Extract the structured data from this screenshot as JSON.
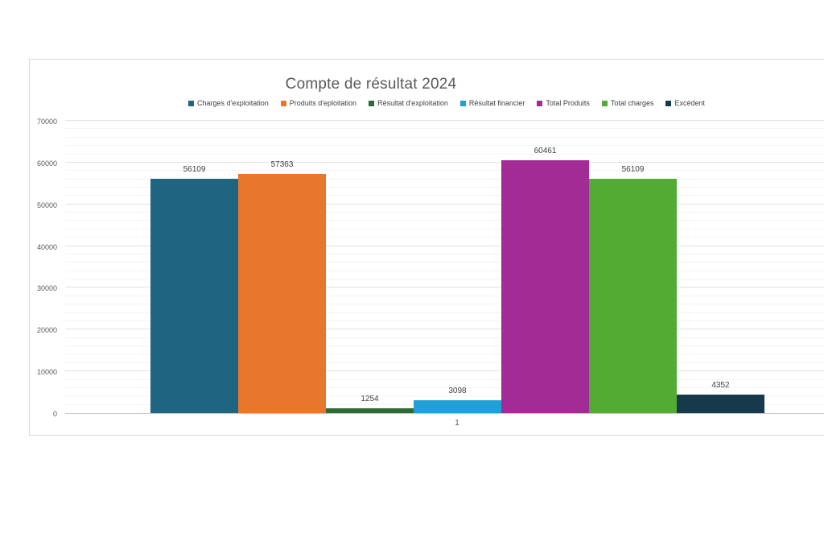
{
  "chart": {
    "category_label": "1"
  },
  "chart_data": {
    "type": "bar",
    "title": "Compte de résultat 2024",
    "categories": [
      "1"
    ],
    "series": [
      {
        "name": "Charges d'exploitation",
        "color": "#1f6480",
        "values": [
          56109
        ]
      },
      {
        "name": "Produits d'eploitation",
        "color": "#e8762c",
        "values": [
          57363
        ]
      },
      {
        "name": "Résultat d'exploitation",
        "color": "#2e6b34",
        "values": [
          1254
        ]
      },
      {
        "name": "Résultat financier",
        "color": "#21a0d6",
        "values": [
          3098
        ]
      },
      {
        "name": "Total Produits",
        "color": "#a22b96",
        "values": [
          60461
        ]
      },
      {
        "name": "Total charges",
        "color": "#54ab34",
        "values": [
          56109
        ]
      },
      {
        "name": "Excédent",
        "color": "#16394c",
        "values": [
          4352
        ]
      }
    ],
    "ylim": [
      0,
      70000
    ],
    "y_major_step": 10000,
    "y_minor_step": 2000,
    "y_tick_labels": [
      "0",
      "10000",
      "20000",
      "30000",
      "40000",
      "50000",
      "60000",
      "70000"
    ],
    "grid": true,
    "legend_position": "top",
    "xlabel": "",
    "ylabel": ""
  }
}
